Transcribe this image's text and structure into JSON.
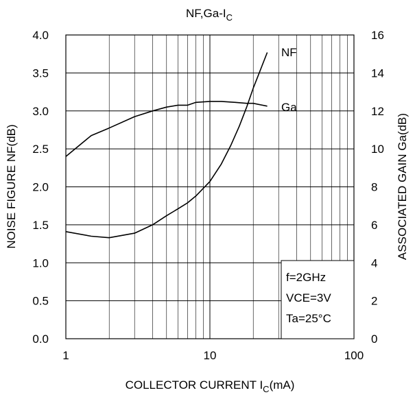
{
  "chart_data": {
    "type": "line",
    "title": "NF,Ga-I",
    "title_sub": "C",
    "xlabel": "COLLECTOR CURRENT I",
    "xlabel_sub": "C",
    "xlabel_unit": "(mA)",
    "ylabel": "NOISE FIGURE NF(dB)",
    "y2label": "ASSOCIATED GAIN Ga(dB)",
    "xscale": "log",
    "xlim": [
      1,
      100
    ],
    "ylim": [
      0,
      4.0
    ],
    "y2lim": [
      0,
      16
    ],
    "grid": true,
    "x_ticks": [
      1,
      10,
      100
    ],
    "x_tick_labels": [
      "1",
      "10",
      "100"
    ],
    "y_ticks": [
      0,
      0.5,
      1.0,
      1.5,
      2.0,
      2.5,
      3.0,
      3.5,
      4.0
    ],
    "y_tick_labels": [
      "0.0",
      "0.5",
      "1.0",
      "1.5",
      "2.0",
      "2.5",
      "3.0",
      "3.5",
      "4.0"
    ],
    "y2_ticks": [
      0,
      2,
      4,
      6,
      8,
      10,
      12,
      14,
      16
    ],
    "y2_tick_labels": [
      "0",
      "2",
      "4",
      "6",
      "8",
      "10",
      "12",
      "14",
      "16"
    ],
    "series": [
      {
        "name": "NF",
        "axis": "left",
        "x": [
          1,
          1.5,
          2,
          3,
          4,
          5,
          6,
          7,
          8,
          10,
          12,
          14,
          16,
          18,
          20,
          22,
          25
        ],
        "y": [
          1.41,
          1.35,
          1.33,
          1.39,
          1.5,
          1.62,
          1.71,
          1.79,
          1.88,
          2.07,
          2.3,
          2.55,
          2.8,
          3.05,
          3.3,
          3.5,
          3.77
        ]
      },
      {
        "name": "Ga",
        "axis": "right",
        "x": [
          1,
          1.5,
          2,
          3,
          4,
          5,
          6,
          7,
          8,
          10,
          12,
          15,
          18,
          20,
          25
        ],
        "y": [
          9.6,
          10.7,
          11.1,
          11.7,
          12.0,
          12.2,
          12.3,
          12.3,
          12.45,
          12.5,
          12.5,
          12.45,
          12.4,
          12.4,
          12.25
        ]
      }
    ],
    "conditions": [
      "f=2GHz",
      "VCE=3V",
      "Ta=25°C"
    ]
  }
}
